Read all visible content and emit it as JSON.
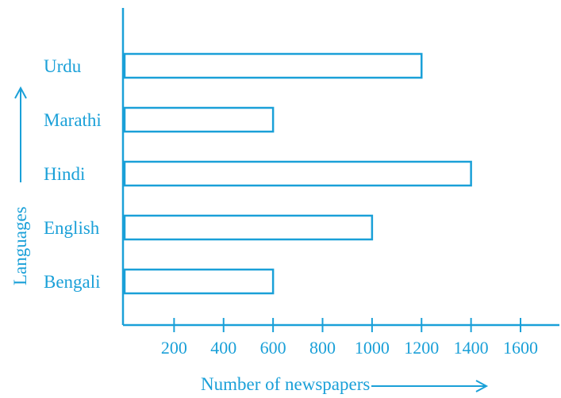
{
  "colors": {
    "accent": "#1aa0d8",
    "text": "#1aa0d8",
    "background": "#ffffff"
  },
  "chart_data": {
    "type": "bar",
    "orientation": "horizontal",
    "title": "",
    "xlabel": "Number of newspapers",
    "ylabel": "Languages",
    "categories": [
      "Urdu",
      "Marathi",
      "Hindi",
      "English",
      "Bengali"
    ],
    "values": [
      1200,
      600,
      1400,
      1000,
      600
    ],
    "x_ticks": [
      "200",
      "400",
      "600",
      "800",
      "1000",
      "1200",
      "1400",
      "1600"
    ],
    "xlim": [
      0,
      1700
    ],
    "grid": false,
    "legend": "none",
    "bar_style": "outline"
  }
}
